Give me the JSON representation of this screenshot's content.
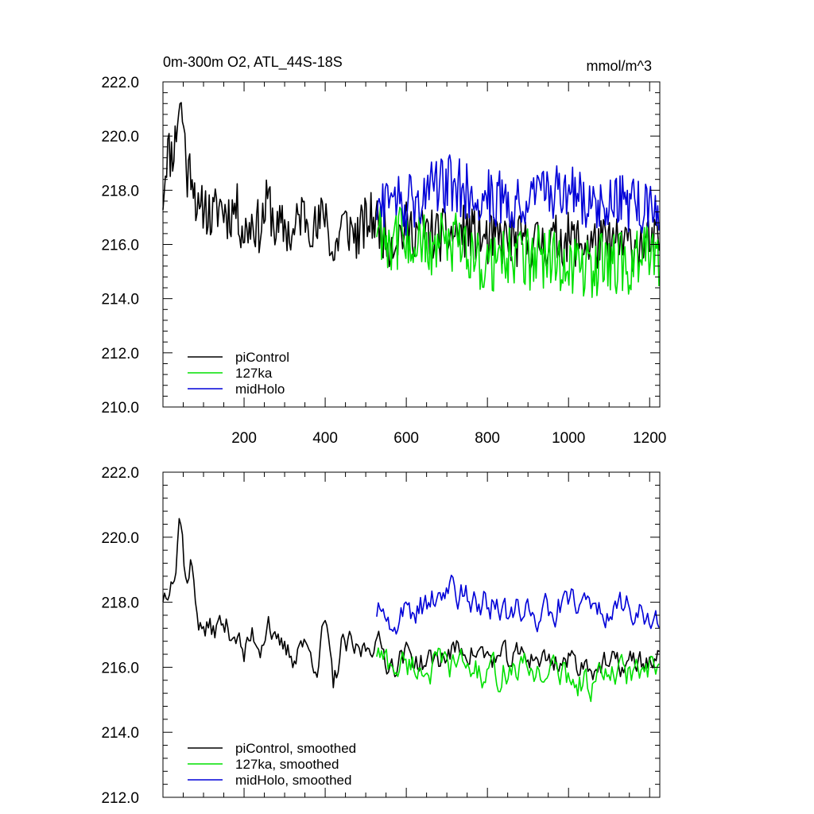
{
  "header": {
    "title": "0m-300m O2, ATL_44S-18S",
    "units": "mmol/m^3"
  },
  "colors": {
    "piControl": "#000000",
    "127ka": "#00e000",
    "midHolo": "#0000d8",
    "axis": "#000000"
  },
  "chart_data": [
    {
      "type": "line",
      "title": "0m-300m O2, ATL_44S-18S",
      "units": "mmol/m^3",
      "xlim": [
        0,
        1225
      ],
      "ylim": [
        210,
        222
      ],
      "xticks": [
        200,
        400,
        600,
        800,
        1000,
        1200
      ],
      "xtick_labels": [
        "200",
        "400",
        "600",
        "800",
        "1000",
        "1200"
      ],
      "yticks": [
        210,
        212,
        214,
        216,
        218,
        220,
        222
      ],
      "ytick_labels": [
        "210.0",
        "212.0",
        "214.0",
        "216.0",
        "218.0",
        "220.0",
        "222.0"
      ],
      "legend_position": "bottom-left",
      "series": [
        {
          "name": "piControl",
          "color": "#000000",
          "x_range": [
            0,
            1225
          ],
          "points": [
            [
              0,
              217.8
            ],
            [
              10,
              219.5
            ],
            [
              20,
              219.3
            ],
            [
              30,
              219.8
            ],
            [
              40,
              221.3
            ],
            [
              50,
              220.6
            ],
            [
              60,
              218.5
            ],
            [
              70,
              219.0
            ],
            [
              80,
              217.9
            ],
            [
              90,
              216.7
            ],
            [
              100,
              217.6
            ],
            [
              120,
              216.9
            ],
            [
              140,
              217.5
            ],
            [
              160,
              217.1
            ],
            [
              180,
              217.4
            ],
            [
              200,
              216.4
            ],
            [
              220,
              216.9
            ],
            [
              240,
              216.6
            ],
            [
              260,
              217.7
            ],
            [
              280,
              216.4
            ],
            [
              300,
              216.7
            ],
            [
              320,
              216.2
            ],
            [
              340,
              217.2
            ],
            [
              360,
              217.0
            ],
            [
              380,
              216.4
            ],
            [
              400,
              217.4
            ],
            [
              420,
              215.4
            ],
            [
              440,
              216.8
            ],
            [
              460,
              216.6
            ],
            [
              480,
              216.3
            ],
            [
              500,
              216.8
            ],
            [
              520,
              217.0
            ],
            [
              560,
              216.1
            ],
            [
              600,
              216.6
            ],
            [
              650,
              216.4
            ],
            [
              700,
              216.3
            ],
            [
              750,
              216.5
            ],
            [
              800,
              216.1
            ],
            [
              850,
              216.2
            ],
            [
              900,
              216.0
            ],
            [
              950,
              216.1
            ],
            [
              1000,
              216.2
            ],
            [
              1050,
              216.0
            ],
            [
              1100,
              216.0
            ],
            [
              1150,
              216.0
            ],
            [
              1200,
              216.0
            ],
            [
              1225,
              216.0
            ]
          ],
          "amplitude_mmol_m3": 1.0
        },
        {
          "name": "127ka",
          "color": "#00e000",
          "x_range": [
            527,
            1225
          ],
          "points": [
            [
              527,
              216.8
            ],
            [
              560,
              216.2
            ],
            [
              600,
              216.3
            ],
            [
              650,
              215.9
            ],
            [
              700,
              216.0
            ],
            [
              750,
              215.9
            ],
            [
              800,
              215.2
            ],
            [
              850,
              215.7
            ],
            [
              900,
              215.5
            ],
            [
              950,
              215.5
            ],
            [
              1000,
              215.3
            ],
            [
              1050,
              215.2
            ],
            [
              1100,
              215.3
            ],
            [
              1150,
              215.3
            ],
            [
              1200,
              215.7
            ],
            [
              1225,
              215.5
            ]
          ],
          "amplitude_mmol_m3": 1.2
        },
        {
          "name": "midHolo",
          "color": "#0000d8",
          "x_range": [
            527,
            1225
          ],
          "points": [
            [
              527,
              217.3
            ],
            [
              560,
              217.5
            ],
            [
              600,
              217.4
            ],
            [
              650,
              217.9
            ],
            [
              700,
              218.3
            ],
            [
              750,
              218.0
            ],
            [
              800,
              217.8
            ],
            [
              850,
              217.7
            ],
            [
              900,
              217.6
            ],
            [
              950,
              217.8
            ],
            [
              1000,
              217.9
            ],
            [
              1050,
              217.6
            ],
            [
              1100,
              217.6
            ],
            [
              1150,
              217.5
            ],
            [
              1200,
              217.4
            ],
            [
              1225,
              217.2
            ]
          ],
          "amplitude_mmol_m3": 1.1
        }
      ]
    },
    {
      "type": "line",
      "xlim": [
        0,
        1225
      ],
      "ylim": [
        212,
        222
      ],
      "xticks": [
        200,
        400,
        600,
        800,
        1000,
        1200
      ],
      "yticks": [
        212,
        214,
        216,
        218,
        220,
        222
      ],
      "ytick_labels": [
        "212.0",
        "214.0",
        "216.0",
        "218.0",
        "220.0",
        "222.0"
      ],
      "legend_position": "bottom-left",
      "series": [
        {
          "name": "piControl, smoothed",
          "color": "#000000",
          "x_range": [
            0,
            1225
          ],
          "points": [
            [
              0,
              218.2
            ],
            [
              10,
              218.4
            ],
            [
              20,
              219.1
            ],
            [
              30,
              218.8
            ],
            [
              40,
              220.5
            ],
            [
              45,
              220.7
            ],
            [
              50,
              219.6
            ],
            [
              60,
              218.5
            ],
            [
              70,
              219.2
            ],
            [
              80,
              218.3
            ],
            [
              90,
              217.3
            ],
            [
              100,
              217.2
            ],
            [
              120,
              217.1
            ],
            [
              140,
              217.3
            ],
            [
              160,
              217.2
            ],
            [
              180,
              217.1
            ],
            [
              200,
              216.3
            ],
            [
              220,
              217.0
            ],
            [
              240,
              216.7
            ],
            [
              260,
              217.6
            ],
            [
              280,
              216.5
            ],
            [
              300,
              216.5
            ],
            [
              320,
              216.3
            ],
            [
              340,
              216.9
            ],
            [
              360,
              216.4
            ],
            [
              380,
              216.2
            ],
            [
              400,
              217.4
            ],
            [
              420,
              215.3
            ],
            [
              440,
              216.6
            ],
            [
              460,
              216.6
            ],
            [
              480,
              216.4
            ],
            [
              500,
              216.6
            ],
            [
              520,
              216.9
            ],
            [
              560,
              216.1
            ],
            [
              600,
              216.4
            ],
            [
              650,
              216.1
            ],
            [
              700,
              216.4
            ],
            [
              750,
              216.6
            ],
            [
              800,
              216.3
            ],
            [
              850,
              216.2
            ],
            [
              900,
              216.4
            ],
            [
              950,
              216.2
            ],
            [
              1000,
              216.2
            ],
            [
              1050,
              216.1
            ],
            [
              1100,
              216.0
            ],
            [
              1150,
              216.1
            ],
            [
              1200,
              216.2
            ],
            [
              1225,
              216.2
            ]
          ],
          "amplitude_mmol_m3": 0.6
        },
        {
          "name": "127ka, smoothed",
          "color": "#00e000",
          "x_range": [
            527,
            1225
          ],
          "points": [
            [
              527,
              216.5
            ],
            [
              560,
              216.0
            ],
            [
              600,
              216.1
            ],
            [
              650,
              216.0
            ],
            [
              700,
              216.0
            ],
            [
              750,
              216.1
            ],
            [
              800,
              215.6
            ],
            [
              850,
              216.0
            ],
            [
              900,
              215.9
            ],
            [
              950,
              215.9
            ],
            [
              1000,
              215.7
            ],
            [
              1050,
              215.5
            ],
            [
              1100,
              215.7
            ],
            [
              1150,
              215.8
            ],
            [
              1200,
              215.8
            ],
            [
              1225,
              215.8
            ]
          ],
          "amplitude_mmol_m3": 0.7
        },
        {
          "name": "midHolo, smoothed",
          "color": "#0000d8",
          "x_range": [
            527,
            1225
          ],
          "points": [
            [
              527,
              217.7
            ],
            [
              560,
              217.5
            ],
            [
              600,
              217.6
            ],
            [
              650,
              218.0
            ],
            [
              700,
              218.2
            ],
            [
              750,
              218.2
            ],
            [
              800,
              218.0
            ],
            [
              850,
              217.7
            ],
            [
              900,
              217.8
            ],
            [
              950,
              217.7
            ],
            [
              1000,
              218.0
            ],
            [
              1050,
              217.8
            ],
            [
              1100,
              217.9
            ],
            [
              1150,
              217.7
            ],
            [
              1200,
              217.5
            ],
            [
              1225,
              217.5
            ]
          ],
          "amplitude_mmol_m3": 0.7
        }
      ]
    }
  ]
}
